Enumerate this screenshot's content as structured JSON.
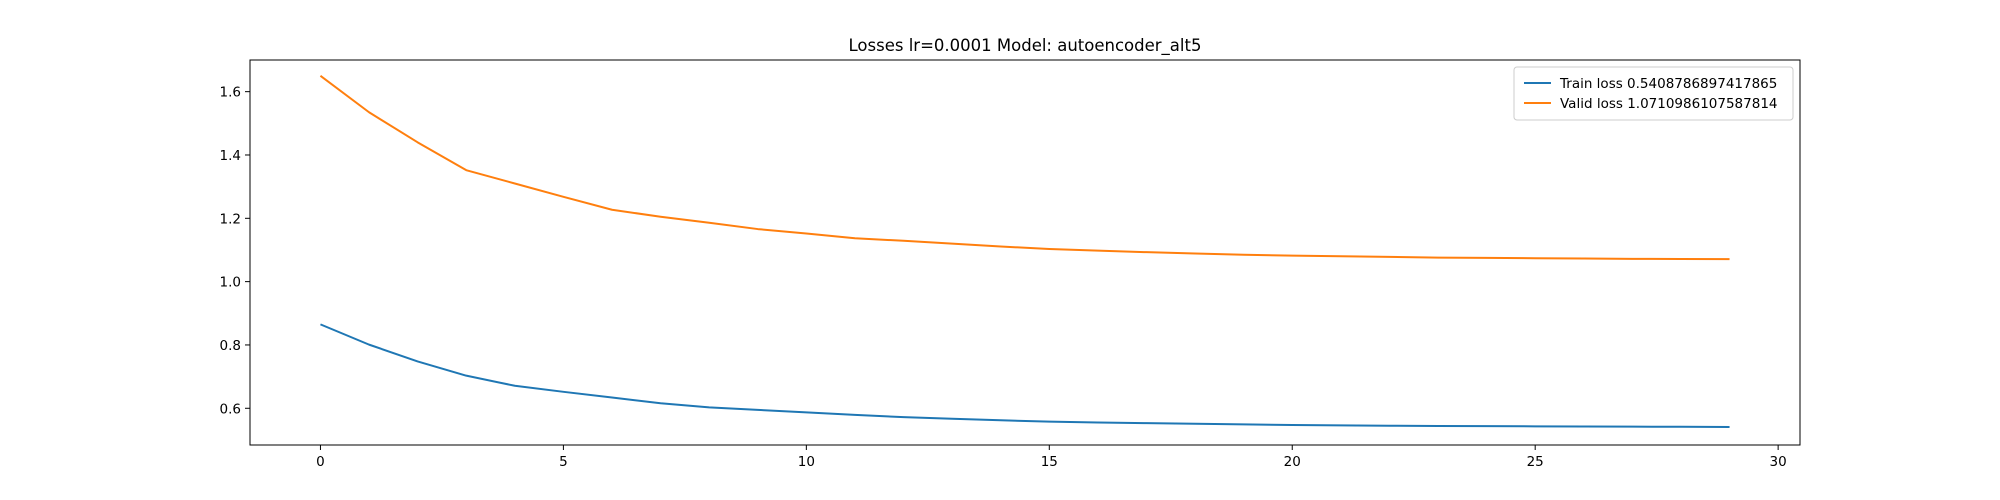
{
  "chart_data": {
    "type": "line",
    "title": "Losses lr=0.0001 Model: autoencoder_alt5",
    "xlabel": "",
    "ylabel": "",
    "xlim": [
      -1.45,
      30.45
    ],
    "ylim": [
      0.484,
      1.7
    ],
    "xticks": [
      0,
      5,
      10,
      15,
      20,
      25,
      30
    ],
    "yticks": [
      0.6,
      0.8,
      1.0,
      1.2,
      1.4,
      1.6
    ],
    "ytick_labels": [
      "0.6",
      "0.8",
      "1.0",
      "1.2",
      "1.4",
      "1.6"
    ],
    "grid": false,
    "legend_position": "top-right",
    "x": [
      0,
      1,
      2,
      3,
      4,
      5,
      6,
      7,
      8,
      9,
      10,
      11,
      12,
      13,
      14,
      15,
      16,
      17,
      18,
      19,
      20,
      21,
      22,
      23,
      24,
      25,
      26,
      27,
      28,
      29
    ],
    "series": [
      {
        "name": "Train loss 0.5408786897417865",
        "color": "#1f77b4",
        "values": [
          0.865,
          0.801,
          0.748,
          0.703,
          0.671,
          0.652,
          0.634,
          0.616,
          0.603,
          0.595,
          0.587,
          0.579,
          0.572,
          0.567,
          0.562,
          0.558,
          0.555,
          0.553,
          0.551,
          0.549,
          0.547,
          0.546,
          0.545,
          0.544,
          0.5435,
          0.543,
          0.5425,
          0.542,
          0.5415,
          0.541
        ]
      },
      {
        "name": "Valid loss 1.0710986107587814",
        "color": "#ff7f0e",
        "values": [
          1.65,
          1.535,
          1.44,
          1.352,
          1.31,
          1.268,
          1.227,
          1.205,
          1.186,
          1.166,
          1.152,
          1.137,
          1.129,
          1.12,
          1.111,
          1.103,
          1.098,
          1.093,
          1.089,
          1.085,
          1.082,
          1.08,
          1.078,
          1.076,
          1.075,
          1.074,
          1.073,
          1.072,
          1.0715,
          1.071
        ]
      }
    ]
  }
}
